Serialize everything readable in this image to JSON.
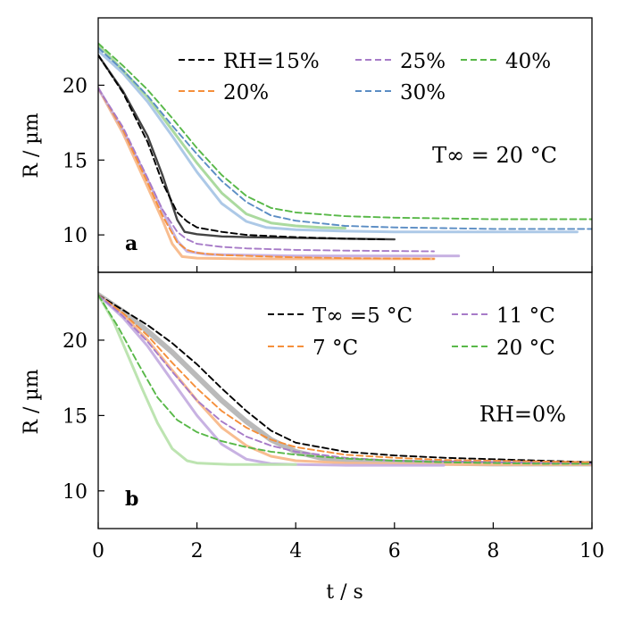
{
  "chart_data": [
    {
      "panel": "a",
      "type": "line",
      "ylabel": "R / µm",
      "xlim": [
        0,
        10
      ],
      "ylim": [
        7.5,
        24.5
      ],
      "yticks": [
        "10",
        "15",
        "20"
      ],
      "annotation": "T∞ = 20 °C",
      "panel_label": "a",
      "legend_position": "top-right",
      "grid": false,
      "series": [
        {
          "name": "RH=15%",
          "color": "#000000",
          "style": "dashed",
          "x": [
            0,
            0.5,
            1.0,
            1.3,
            1.6,
            1.8,
            2.0,
            2.5,
            3.0,
            4.0,
            5.0,
            5.8
          ],
          "y": [
            22.0,
            19.5,
            16.2,
            13.5,
            11.5,
            10.9,
            10.5,
            10.2,
            10.0,
            9.85,
            9.75,
            9.7
          ]
        },
        {
          "name": "20%",
          "color": "#f58f3b",
          "style": "dashed",
          "x": [
            0,
            0.5,
            1.0,
            1.3,
            1.6,
            1.8,
            2.0,
            2.5,
            3.0,
            4.0,
            5.0,
            6.8
          ],
          "y": [
            19.8,
            17.0,
            13.5,
            11.3,
            9.5,
            9.0,
            8.8,
            8.65,
            8.6,
            8.5,
            8.45,
            8.4
          ]
        },
        {
          "name": "25%",
          "color": "#a77bc8",
          "style": "dashed",
          "x": [
            0,
            0.5,
            1.0,
            1.3,
            1.6,
            1.8,
            2.0,
            2.5,
            3.0,
            4.0,
            5.0,
            6.8
          ],
          "y": [
            19.8,
            17.2,
            13.8,
            11.7,
            10.2,
            9.7,
            9.4,
            9.2,
            9.1,
            9.0,
            8.95,
            8.9
          ]
        },
        {
          "name": "30%",
          "color": "#5b8dc4",
          "style": "dashed",
          "x": [
            0,
            0.5,
            1.0,
            1.5,
            2.0,
            2.5,
            3.0,
            3.5,
            4.0,
            5.0,
            6.0,
            7.0,
            8.0,
            9.0,
            10.0
          ],
          "y": [
            22.5,
            21.0,
            19.3,
            17.3,
            15.4,
            13.6,
            12.2,
            11.3,
            10.95,
            10.6,
            10.5,
            10.45,
            10.4,
            10.4,
            10.4
          ]
        },
        {
          "name": "40%",
          "color": "#58b848",
          "style": "dashed",
          "x": [
            0,
            0.5,
            1.0,
            1.5,
            2.0,
            2.5,
            3.0,
            3.5,
            4.0,
            5.0,
            6.0,
            7.0,
            8.0,
            9.0,
            10.0
          ],
          "y": [
            22.8,
            21.3,
            19.7,
            17.8,
            15.8,
            14.0,
            12.6,
            11.8,
            11.5,
            11.25,
            11.15,
            11.1,
            11.05,
            11.05,
            11.05
          ]
        },
        {
          "color": "#222222",
          "style": "solid",
          "opacity": 0.85,
          "width": 2.4,
          "x": [
            0,
            0.5,
            1.0,
            1.3,
            1.6,
            1.75,
            2.0,
            2.5,
            3.0,
            4.0,
            5.0,
            6.0
          ],
          "y": [
            22.0,
            19.6,
            16.6,
            14.0,
            11.0,
            10.2,
            10.05,
            9.9,
            9.85,
            9.8,
            9.75,
            9.7
          ]
        },
        {
          "color": "#f8b98a",
          "style": "solid",
          "opacity": 0.95,
          "width": 3.0,
          "x": [
            0,
            0.5,
            1.0,
            1.3,
            1.5,
            1.7,
            2.0,
            3.0,
            4.0,
            5.0,
            6.8
          ],
          "y": [
            19.8,
            16.8,
            13.2,
            11.0,
            9.4,
            8.55,
            8.45,
            8.4,
            8.4,
            8.4,
            8.4
          ]
        },
        {
          "color": "#c5aee0",
          "style": "solid",
          "opacity": 0.95,
          "width": 3.0,
          "x": [
            0,
            0.5,
            1.0,
            1.3,
            1.6,
            1.8,
            2.2,
            3.0,
            4.0,
            5.0,
            6.0,
            7.3
          ],
          "y": [
            19.8,
            17.0,
            13.7,
            11.6,
            9.6,
            8.9,
            8.7,
            8.65,
            8.6,
            8.6,
            8.6,
            8.6
          ]
        },
        {
          "color": "#a9c6e6",
          "style": "solid",
          "opacity": 0.95,
          "width": 3.0,
          "x": [
            0,
            0.5,
            1.0,
            1.5,
            2.0,
            2.5,
            3.0,
            3.4,
            4.0,
            5.0,
            6.0,
            7.0,
            8.0,
            9.0,
            9.7
          ],
          "y": [
            22.3,
            20.8,
            18.9,
            16.6,
            14.2,
            12.1,
            10.9,
            10.5,
            10.35,
            10.25,
            10.2,
            10.2,
            10.2,
            10.2,
            10.2
          ]
        },
        {
          "color": "#a7d89a",
          "style": "solid",
          "opacity": 0.95,
          "width": 3.0,
          "x": [
            0,
            0.5,
            1.0,
            1.5,
            2.0,
            2.5,
            3.0,
            3.5,
            4.0,
            4.5,
            5.0
          ],
          "y": [
            22.7,
            21.0,
            19.2,
            17.0,
            14.8,
            12.8,
            11.4,
            10.8,
            10.6,
            10.5,
            10.45
          ]
        }
      ]
    },
    {
      "panel": "b",
      "type": "line",
      "ylabel": "R / µm",
      "xlabel": "t / s",
      "xlim": [
        0,
        10
      ],
      "ylim": [
        7.5,
        24.5
      ],
      "xticks": [
        "0",
        "2",
        "4",
        "6",
        "8",
        "10"
      ],
      "yticks": [
        "10",
        "15",
        "20"
      ],
      "annotation": "RH=0%",
      "panel_label": "b",
      "legend_position": "top-right",
      "grid": false,
      "series": [
        {
          "name": "T∞ =5 °C",
          "color": "#000000",
          "style": "dashed",
          "x": [
            0,
            0.5,
            1.0,
            1.5,
            2.0,
            2.5,
            3.0,
            3.5,
            4.0,
            5.0,
            6.0,
            7.0,
            8.0,
            9.0,
            10.0
          ],
          "y": [
            23.0,
            22.0,
            21.0,
            19.8,
            18.4,
            16.8,
            15.3,
            14.0,
            13.2,
            12.6,
            12.35,
            12.2,
            12.1,
            12.0,
            11.9
          ]
        },
        {
          "name": "7 °C",
          "color": "#f58f3b",
          "style": "dashed",
          "x": [
            0,
            0.5,
            1.0,
            1.5,
            2.0,
            2.5,
            3.0,
            3.5,
            4.0,
            5.0,
            6.0,
            7.0,
            8.0,
            9.0,
            10.0
          ],
          "y": [
            23.0,
            21.8,
            20.3,
            18.5,
            16.8,
            15.3,
            14.2,
            13.4,
            12.9,
            12.4,
            12.2,
            12.05,
            12.0,
            11.95,
            11.9
          ]
        },
        {
          "name": "11 °C",
          "color": "#a77bc8",
          "style": "dashed",
          "x": [
            0,
            0.5,
            1.0,
            1.5,
            2.0,
            2.5,
            3.0,
            3.5,
            4.0,
            5.0,
            6.0,
            7.0,
            8.0,
            9.0,
            10.0
          ],
          "y": [
            23.0,
            21.6,
            19.9,
            17.9,
            16.0,
            14.6,
            13.6,
            13.0,
            12.6,
            12.2,
            12.0,
            11.95,
            11.9,
            11.85,
            11.8
          ]
        },
        {
          "name": "20 °C",
          "color": "#58b848",
          "style": "dashed",
          "x": [
            0,
            0.4,
            0.8,
            1.2,
            1.6,
            2.0,
            2.5,
            3.0,
            3.5,
            4.0,
            5.0,
            6.0,
            7.0,
            8.0,
            9.0,
            10.0
          ],
          "y": [
            23.0,
            20.9,
            18.5,
            16.2,
            14.7,
            13.9,
            13.3,
            12.9,
            12.6,
            12.4,
            12.15,
            12.0,
            11.9,
            11.85,
            11.8,
            11.8
          ]
        },
        {
          "color": "#3a3a3a",
          "style": "solid",
          "opacity": 0.35,
          "width": 6.0,
          "x": [
            0,
            0.5,
            1.0,
            1.5,
            2.0,
            2.5,
            3.0,
            3.5,
            4.0,
            4.5,
            5.0,
            6.0,
            7.0,
            8.0,
            9.0,
            10.0
          ],
          "y": [
            23.0,
            21.9,
            20.6,
            19.2,
            17.6,
            16.0,
            14.6,
            13.4,
            12.6,
            12.2,
            12.0,
            11.9,
            11.85,
            11.8,
            11.8,
            11.8
          ]
        },
        {
          "color": "#f8b98a",
          "style": "solid",
          "opacity": 0.95,
          "width": 3.0,
          "x": [
            0,
            0.5,
            1.0,
            1.5,
            2.0,
            2.5,
            3.0,
            3.5,
            4.0,
            5.0,
            6.0,
            7.0,
            8.0,
            9.0,
            10.0
          ],
          "y": [
            23.0,
            21.7,
            20.0,
            18.0,
            16.0,
            14.2,
            13.0,
            12.3,
            12.0,
            11.85,
            11.8,
            11.75,
            11.75,
            11.75,
            11.75
          ]
        },
        {
          "color": "#c5aee0",
          "style": "solid",
          "opacity": 0.95,
          "width": 3.0,
          "x": [
            0,
            0.5,
            1.0,
            1.5,
            2.0,
            2.5,
            3.0,
            3.5,
            4.0,
            5.0,
            6.0,
            7.0
          ],
          "y": [
            23.0,
            21.5,
            19.6,
            17.3,
            15.0,
            13.1,
            12.1,
            11.8,
            11.75,
            11.7,
            11.7,
            11.7
          ]
        },
        {
          "color": "#b9e3ad",
          "style": "solid",
          "opacity": 0.95,
          "width": 3.0,
          "x": [
            0,
            0.3,
            0.6,
            0.9,
            1.2,
            1.5,
            1.8,
            2.0,
            2.3,
            2.7,
            3.0,
            3.5,
            4.0
          ],
          "y": [
            23.0,
            21.3,
            19.0,
            16.7,
            14.5,
            12.8,
            12.0,
            11.85,
            11.8,
            11.75,
            11.75,
            11.75,
            11.75
          ]
        }
      ]
    }
  ],
  "legend_a": {
    "rows": [
      [
        {
          "label": "RH=15%",
          "color": "#000000"
        },
        {
          "label": "25%",
          "color": "#a77bc8"
        },
        {
          "label": "40%",
          "color": "#58b848"
        }
      ],
      [
        {
          "label": "20%",
          "color": "#f58f3b"
        },
        {
          "label": "30%",
          "color": "#5b8dc4"
        }
      ]
    ]
  },
  "legend_b": {
    "rows": [
      [
        {
          "label": "T∞ =5 °C",
          "color": "#000000"
        },
        {
          "label": "11 °C",
          "color": "#a77bc8"
        }
      ],
      [
        {
          "label": "7 °C",
          "color": "#f58f3b"
        },
        {
          "label": "20 °C",
          "color": "#58b848"
        }
      ]
    ]
  }
}
